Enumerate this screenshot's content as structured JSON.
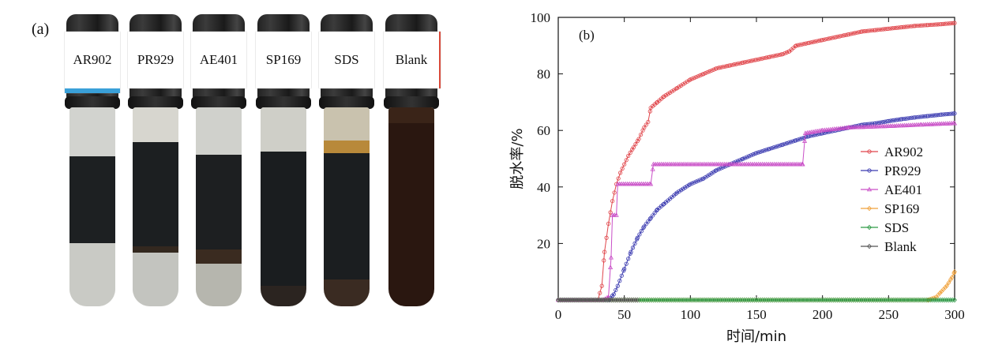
{
  "panel_a": {
    "label": "(a)",
    "vials": [
      {
        "label": "AR902",
        "tag_color": "#ffffff",
        "accent": "#3aa0d8"
      },
      {
        "label": "PR929",
        "tag_color": "#ffffff",
        "accent": ""
      },
      {
        "label": "AE401",
        "tag_color": "#ffffff",
        "accent": ""
      },
      {
        "label": "SP169",
        "tag_color": "#ffffff",
        "accent": ""
      },
      {
        "label": "SDS",
        "tag_color": "#ffffff",
        "accent": ""
      },
      {
        "label": "Blank",
        "tag_color": "#ffffff",
        "accent": "#d94a3a"
      }
    ],
    "colors": {
      "oil": "#1b1e20",
      "water": "#c7c8c2",
      "emulsion": "#3a2418",
      "froth": "#b8893a"
    }
  },
  "chart_data": {
    "type": "line",
    "panel_label": "(b)",
    "xlabel": "时间/min",
    "ylabel": "脱水率/%",
    "xlim": [
      0,
      300
    ],
    "ylim": [
      0,
      100
    ],
    "xticks": [
      0,
      50,
      100,
      150,
      200,
      250,
      300
    ],
    "yticks": [
      20,
      40,
      60,
      80,
      100
    ],
    "grid": false,
    "legend": "right",
    "series": [
      {
        "name": "AR902",
        "color": "#e0454a",
        "marker": "circle",
        "points": [
          [
            0,
            0
          ],
          [
            30,
            0
          ],
          [
            33,
            5
          ],
          [
            35,
            17
          ],
          [
            38,
            27
          ],
          [
            41,
            35
          ],
          [
            44,
            41
          ],
          [
            47,
            45
          ],
          [
            50,
            48
          ],
          [
            53,
            51
          ],
          [
            57,
            54
          ],
          [
            61,
            57
          ],
          [
            65,
            61
          ],
          [
            68,
            63
          ],
          [
            70,
            68
          ],
          [
            75,
            70
          ],
          [
            80,
            72
          ],
          [
            90,
            75
          ],
          [
            100,
            78
          ],
          [
            110,
            80
          ],
          [
            120,
            82
          ],
          [
            130,
            83
          ],
          [
            140,
            84
          ],
          [
            150,
            85
          ],
          [
            160,
            86
          ],
          [
            170,
            87
          ],
          [
            175,
            88
          ],
          [
            180,
            90
          ],
          [
            190,
            91
          ],
          [
            200,
            92
          ],
          [
            210,
            93
          ],
          [
            220,
            94
          ],
          [
            230,
            95
          ],
          [
            240,
            95.5
          ],
          [
            250,
            96
          ],
          [
            260,
            96.5
          ],
          [
            270,
            97
          ],
          [
            280,
            97.3
          ],
          [
            290,
            97.6
          ],
          [
            300,
            98
          ]
        ]
      },
      {
        "name": "PR929",
        "color": "#3a3ab0",
        "marker": "circle",
        "points": [
          [
            0,
            0
          ],
          [
            38,
            0
          ],
          [
            42,
            2
          ],
          [
            45,
            5
          ],
          [
            50,
            11
          ],
          [
            55,
            17
          ],
          [
            60,
            22
          ],
          [
            65,
            26
          ],
          [
            70,
            29
          ],
          [
            75,
            32
          ],
          [
            80,
            34
          ],
          [
            90,
            38
          ],
          [
            100,
            41
          ],
          [
            110,
            43
          ],
          [
            120,
            46
          ],
          [
            130,
            48
          ],
          [
            140,
            50
          ],
          [
            150,
            52
          ],
          [
            160,
            53.5
          ],
          [
            170,
            55
          ],
          [
            180,
            56.5
          ],
          [
            190,
            58
          ],
          [
            200,
            59
          ],
          [
            210,
            60
          ],
          [
            220,
            61
          ],
          [
            230,
            62
          ],
          [
            240,
            62.5
          ],
          [
            250,
            63.3
          ],
          [
            260,
            64
          ],
          [
            270,
            64.6
          ],
          [
            280,
            65.1
          ],
          [
            290,
            65.6
          ],
          [
            300,
            66
          ]
        ]
      },
      {
        "name": "AE401",
        "color": "#c94fc7",
        "marker": "triangle",
        "points": [
          [
            0,
            0
          ],
          [
            34,
            0
          ],
          [
            38,
            1
          ],
          [
            40,
            15
          ],
          [
            41,
            30
          ],
          [
            44,
            30
          ],
          [
            45,
            41
          ],
          [
            70,
            41
          ],
          [
            72,
            48
          ],
          [
            185,
            48
          ],
          [
            187,
            59
          ],
          [
            200,
            60
          ],
          [
            220,
            61
          ],
          [
            250,
            61.5
          ],
          [
            275,
            62
          ],
          [
            300,
            62.5
          ]
        ]
      },
      {
        "name": "SP169",
        "color": "#f0a13a",
        "marker": "diamond",
        "points": [
          [
            0,
            0
          ],
          [
            280,
            0
          ],
          [
            286,
            1
          ],
          [
            290,
            3
          ],
          [
            294,
            5
          ],
          [
            298,
            8
          ],
          [
            300,
            10
          ]
        ]
      },
      {
        "name": "SDS",
        "color": "#2e9a46",
        "marker": "diamond",
        "points": [
          [
            0,
            0
          ],
          [
            300,
            0
          ]
        ]
      },
      {
        "name": "Blank",
        "color": "#555555",
        "marker": "diamond",
        "points": [
          [
            0,
            0
          ],
          [
            60,
            0
          ]
        ]
      }
    ]
  }
}
